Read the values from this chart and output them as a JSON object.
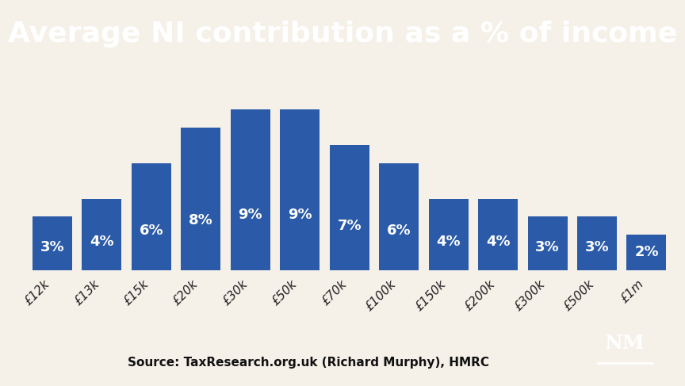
{
  "categories": [
    "£12k",
    "£13k",
    "£15k",
    "£20k",
    "£30k",
    "£50k",
    "£70k",
    "£100k",
    "£150k",
    "£200k",
    "£300k",
    "£500k",
    "£1m"
  ],
  "values": [
    3,
    4,
    6,
    8,
    9,
    9,
    7,
    6,
    4,
    4,
    3,
    3,
    2
  ],
  "bar_color": "#2B5BA8",
  "title": "Average NI contribution as a % of income",
  "title_bg_color": "#000000",
  "title_text_color": "#ffffff",
  "chart_bg_color": "#F5F0E8",
  "bar_label_color": "#ffffff",
  "bar_label_fontsize": 13,
  "xlabel_fontsize": 11,
  "source_text": "Source: TaxResearch.org.uk (Richard Murphy), HMRC",
  "source_fontsize": 11,
  "ylim": [
    0,
    10.8
  ],
  "title_fontsize": 26,
  "outer_bg_color": "#F5F0E8"
}
